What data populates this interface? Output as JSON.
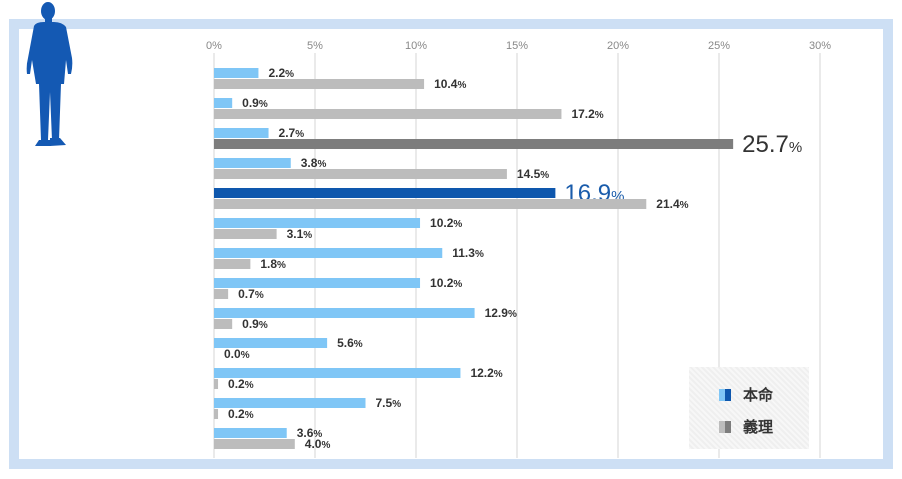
{
  "chart_data": {
    "type": "bar",
    "orientation": "horizontal",
    "xlim": [
      0,
      30
    ],
    "ticks": [
      0,
      5,
      10,
      15,
      20,
      25,
      30
    ],
    "tick_labels": [
      "0%",
      "5%",
      "10%",
      "15%",
      "20%",
      "25%",
      "30%"
    ],
    "grid": true,
    "legend_position": "bottom-right",
    "series": [
      {
        "name": "本命",
        "color": "#7fc6f6",
        "highlight_color": "#0e57ad",
        "values": [
          2.2,
          0.9,
          2.7,
          3.8,
          16.9,
          10.2,
          11.3,
          10.2,
          12.9,
          5.6,
          12.2,
          7.5,
          3.6
        ],
        "labels": [
          "2.2%",
          "0.9%",
          "2.7%",
          "3.8%",
          "16.9%",
          "10.2%",
          "11.3%",
          "10.2%",
          "12.9%",
          "5.6%",
          "12.2%",
          "7.5%",
          "3.6%"
        ],
        "highlight_index": 4
      },
      {
        "name": "義理",
        "color": "#bcbcbc",
        "highlight_color": "#7d7d7d",
        "values": [
          10.4,
          17.2,
          25.7,
          14.5,
          21.4,
          3.1,
          1.8,
          0.7,
          0.9,
          0.0,
          0.2,
          0.2,
          4.0
        ],
        "labels": [
          "10.4%",
          "17.2%",
          "25.7%",
          "14.5%",
          "21.4%",
          "3.1%",
          "1.8%",
          "0.7%",
          "0.9%",
          "0.0%",
          "0.2%",
          "0.2%",
          "4.0%"
        ],
        "highlight_index": 2
      }
    ]
  },
  "legend": {
    "items": [
      {
        "label": "本命",
        "light": "#7fc6f6",
        "dark": "#0e57ad"
      },
      {
        "label": "義理",
        "light": "#bcbcbc",
        "dark": "#7d7d7d"
      }
    ]
  },
  "colors": {
    "frame": "#cddff4",
    "grid": "#d6d6d6",
    "tick_text": "#888888",
    "label_text": "#333333",
    "highlight_blue_text": "#1a5cab",
    "figure": "#1459b3"
  }
}
